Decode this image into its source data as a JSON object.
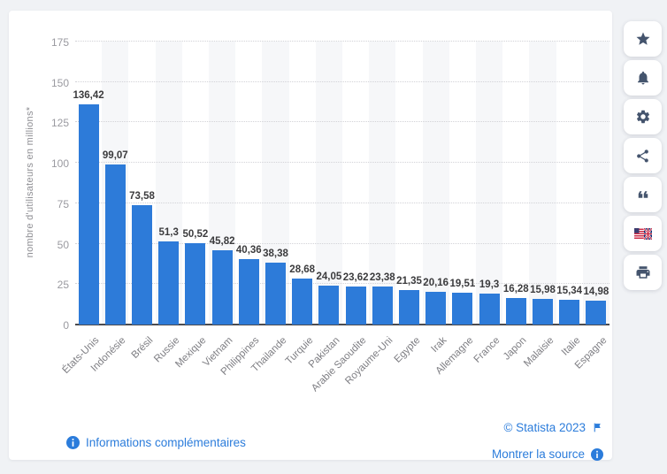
{
  "chart_data": {
    "type": "bar",
    "title": "",
    "xlabel": "",
    "ylabel": "nombre d'utilisateurs en millions*",
    "categories": [
      "États-Unis",
      "Indonésie",
      "Brésil",
      "Russie",
      "Mexique",
      "Vietnam",
      "Philippines",
      "Thailande",
      "Turquie",
      "Pakistan",
      "Arabie Saoudite",
      "Royaume-Uni",
      "Egypte",
      "Irak",
      "Allemagne",
      "France",
      "Japon",
      "Malaisie",
      "Italie",
      "Espagne"
    ],
    "values": [
      136.42,
      99.07,
      73.58,
      51.3,
      50.52,
      45.82,
      40.36,
      38.38,
      28.68,
      24.05,
      23.62,
      23.38,
      21.35,
      20.16,
      19.51,
      19.3,
      16.28,
      15.98,
      15.34,
      14.98
    ],
    "value_labels": [
      "136,42",
      "99,07",
      "73,58",
      "51,3",
      "50,52",
      "45,82",
      "40,36",
      "38,38",
      "28,68",
      "24,05",
      "23,62",
      "23,38",
      "21,35",
      "20,16",
      "19,51",
      "19,3",
      "16,28",
      "15,98",
      "15,34",
      "14,98"
    ],
    "ylim": [
      0,
      175
    ],
    "yticks": [
      0,
      25,
      50,
      75,
      100,
      125,
      150,
      175
    ],
    "grid": "horizontal-dotted",
    "legend": "none",
    "bar_color": "#2d7bd9"
  },
  "footer": {
    "more_info_label": "Informations complémentaires",
    "copyright": "© Statista 2023",
    "show_source_label": "Montrer la source"
  },
  "toolbar": {
    "buttons": [
      "favorite",
      "notifications",
      "settings",
      "share",
      "citation",
      "english-version",
      "print"
    ]
  },
  "colors": {
    "bar": "#2d7bd9",
    "link": "#2b7cdb",
    "icon": "#44546d",
    "axis": "#4b4b4f",
    "page_background": "#f0f2f5"
  }
}
